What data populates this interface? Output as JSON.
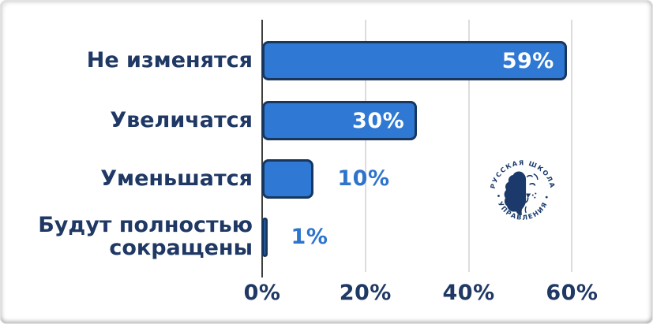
{
  "chart_data": {
    "type": "bar",
    "orientation": "horizontal",
    "title": "",
    "categories": [
      "Не изменятся",
      "Увеличатся",
      "Уменьшатся",
      "Будут полностью сокращены"
    ],
    "values": [
      59,
      30,
      10,
      1
    ],
    "value_labels": [
      "59%",
      "30%",
      "10%",
      "1%"
    ],
    "value_label_inside": [
      true,
      true,
      false,
      false
    ],
    "x_ticks": [
      0,
      20,
      40,
      60
    ],
    "x_tick_labels": [
      "0%",
      "20%",
      "40%",
      "60%"
    ],
    "xlim": [
      0,
      70
    ],
    "grid": "vertical light gray lines at ticks",
    "legend": "none",
    "colors": {
      "bar_fill": "#2F78D3",
      "bar_border": "#17375E",
      "category_text": "#1F3864",
      "axis_tick_text": "#1F3864",
      "value_inside_text": "#FFFFFF",
      "value_outside_text": "#2E74CC",
      "gridline": "#DCDCDC",
      "axis_line": "#3F3F3F",
      "background": "#FFFFFF"
    }
  },
  "logo": {
    "name": "Русская школа управления",
    "top_text": "РУССКАЯ ШКОЛА",
    "bottom_text": "• УПРАВЛЕНИЯ •",
    "color": "#1B3A6B"
  }
}
